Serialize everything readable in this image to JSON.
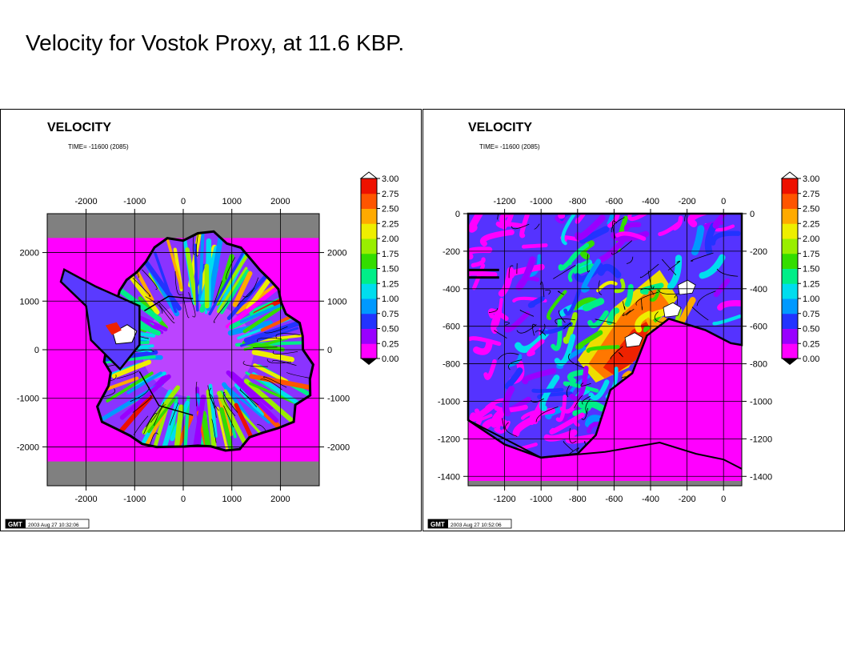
{
  "slide": {
    "title": "Velocity for Vostok Proxy, at 11.6 KBP."
  },
  "colors": {
    "background_fill": "#ff00ff",
    "frame_gray": "#808080",
    "colorbar": [
      "#ff00ff",
      "#9900ff",
      "#2233ff",
      "#0099ff",
      "#00ddee",
      "#00ee88",
      "#33dd00",
      "#99ee00",
      "#eeee00",
      "#ffaa00",
      "#ff5500",
      "#ee1100"
    ]
  },
  "chart_data": [
    {
      "type": "heatmap",
      "title": "VELOCITY",
      "subtitle": "TIME= -11600 (2085)",
      "x_ticks": [
        "-2000",
        "-1000",
        "0",
        "1000",
        "2000"
      ],
      "y_ticks": [
        "2000",
        "1000",
        "0",
        "-1000",
        "-2000"
      ],
      "xlim": [
        -2800,
        2800
      ],
      "ylim": [
        -2800,
        2800
      ],
      "colorbar": {
        "labels": [
          "3.00",
          "2.75",
          "2.50",
          "2.25",
          "2.00",
          "1.75",
          "1.50",
          "1.25",
          "1.00",
          "0.75",
          "0.50",
          "0.25",
          "0.00"
        ],
        "min": 0,
        "max": 3,
        "step": 0.25
      },
      "gmt_stamp": "GMT",
      "timestamp": "2003 Aug 27 10:32:06"
    },
    {
      "type": "heatmap",
      "title": "VELOCITY",
      "subtitle": "TIME= -11600 (2085)",
      "x_ticks": [
        "-1200",
        "-1000",
        "-800",
        "-600",
        "-400",
        "-200",
        "0"
      ],
      "y_ticks": [
        "0",
        "-200",
        "-400",
        "-600",
        "-800",
        "-1000",
        "-1200",
        "-1400"
      ],
      "xlim": [
        -1400,
        100
      ],
      "ylim": [
        -1450,
        0
      ],
      "colorbar": {
        "labels": [
          "3.00",
          "2.75",
          "2.50",
          "2.25",
          "2.00",
          "1.75",
          "1.50",
          "1.25",
          "1.00",
          "0.75",
          "0.50",
          "0.25",
          "0.00"
        ],
        "min": 0,
        "max": 3,
        "step": 0.25
      },
      "gmt_stamp": "GMT",
      "timestamp": "2003 Aug 27 10:52:06"
    }
  ]
}
